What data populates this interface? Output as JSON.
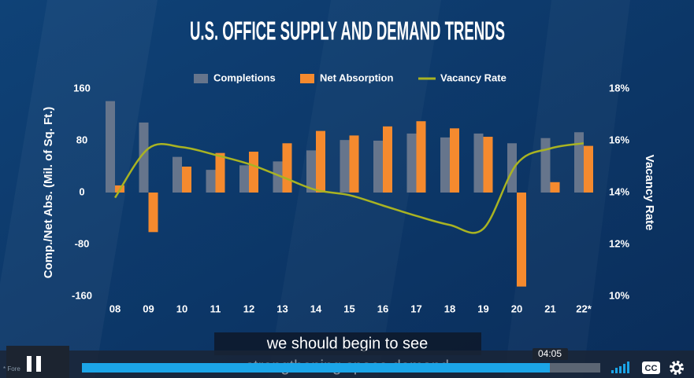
{
  "chart_data": {
    "type": "bar",
    "title": "U.S. OFFICE SUPPLY AND DEMAND TRENDS",
    "y_label": "Comp./Net Abs. (Mil. of Sq. Ft.)",
    "y2_label": "Vacancy Rate",
    "categories": [
      "08",
      "09",
      "10",
      "11",
      "12",
      "13",
      "14",
      "15",
      "16",
      "17",
      "18",
      "19",
      "20",
      "21",
      "22*"
    ],
    "series": [
      {
        "name": "Completions",
        "type": "bar",
        "color": "#66758c",
        "values": [
          141,
          108,
          55,
          35,
          42,
          48,
          65,
          81,
          80,
          91,
          85,
          91,
          76,
          84,
          93
        ]
      },
      {
        "name": "Net Absorption",
        "type": "bar",
        "color": "#f58a2e",
        "values": [
          11,
          -61,
          40,
          61,
          63,
          76,
          95,
          88,
          102,
          110,
          99,
          86,
          -145,
          16,
          72
        ]
      },
      {
        "name": "Vacancy Rate",
        "type": "line",
        "axis": "y2",
        "color": "#a9b322",
        "values": [
          13.8,
          15.7,
          15.75,
          15.45,
          15.1,
          14.6,
          14.1,
          13.9,
          13.5,
          13.1,
          12.75,
          12.6,
          15.1,
          15.7,
          15.9
        ]
      }
    ],
    "ylim": [
      -160,
      160
    ],
    "yticks": [
      160,
      80,
      0,
      -80,
      -160
    ],
    "y2lim": [
      10,
      18
    ],
    "y2ticks": [
      {
        "value": 18,
        "label": "18%"
      },
      {
        "value": 16,
        "label": "16%"
      },
      {
        "value": 14,
        "label": "14%"
      },
      {
        "value": 12,
        "label": "12%"
      },
      {
        "value": 10,
        "label": "10%"
      }
    ],
    "legend": "top"
  },
  "player": {
    "caption": "we should begin to see",
    "caption_next": "strengthening space demand",
    "time": "04:05",
    "cc": "CC",
    "footnote": "* Fore"
  }
}
